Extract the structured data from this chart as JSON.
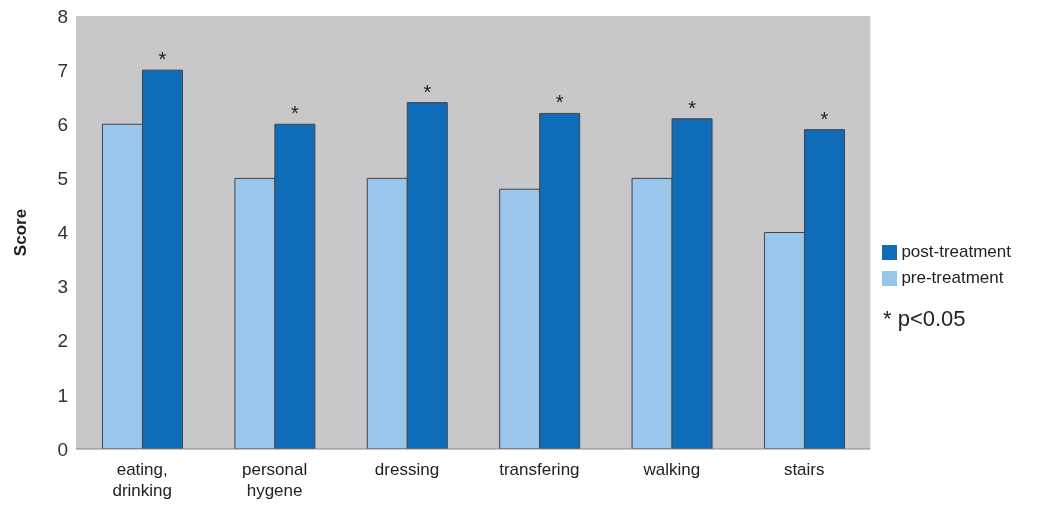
{
  "chart_data": {
    "type": "bar",
    "ylabel": "Score",
    "categories": [
      "eating, drinking",
      "personal hygene",
      "dressing",
      "transfering",
      "walking",
      "stairs"
    ],
    "series": [
      {
        "name": "pre-treatment",
        "color": "#99c6ea",
        "values": [
          6,
          5,
          5,
          4.8,
          5,
          4
        ]
      },
      {
        "name": "post-treatment",
        "color": "#0e6cb8",
        "values": [
          7,
          6,
          6.4,
          6.2,
          6.1,
          5.9
        ]
      }
    ],
    "ylim": [
      0,
      8
    ],
    "yticks": [
      0,
      1,
      2,
      3,
      4,
      5,
      6,
      7,
      8
    ],
    "grid": false,
    "legend": "right",
    "annotations": [
      {
        "text": "*",
        "x": "eating, drinking",
        "y": 7
      },
      {
        "text": "*",
        "x": "personal hygene",
        "y": 6
      },
      {
        "text": "*",
        "x": "dressing",
        "y": 6.4
      },
      {
        "text": "*",
        "x": "transfering",
        "y": 6.2
      },
      {
        "text": "*",
        "x": "walking",
        "y": 6.1
      },
      {
        "text": "*",
        "x": "stairs",
        "y": 5.9
      },
      "* p<0.05"
    ]
  }
}
